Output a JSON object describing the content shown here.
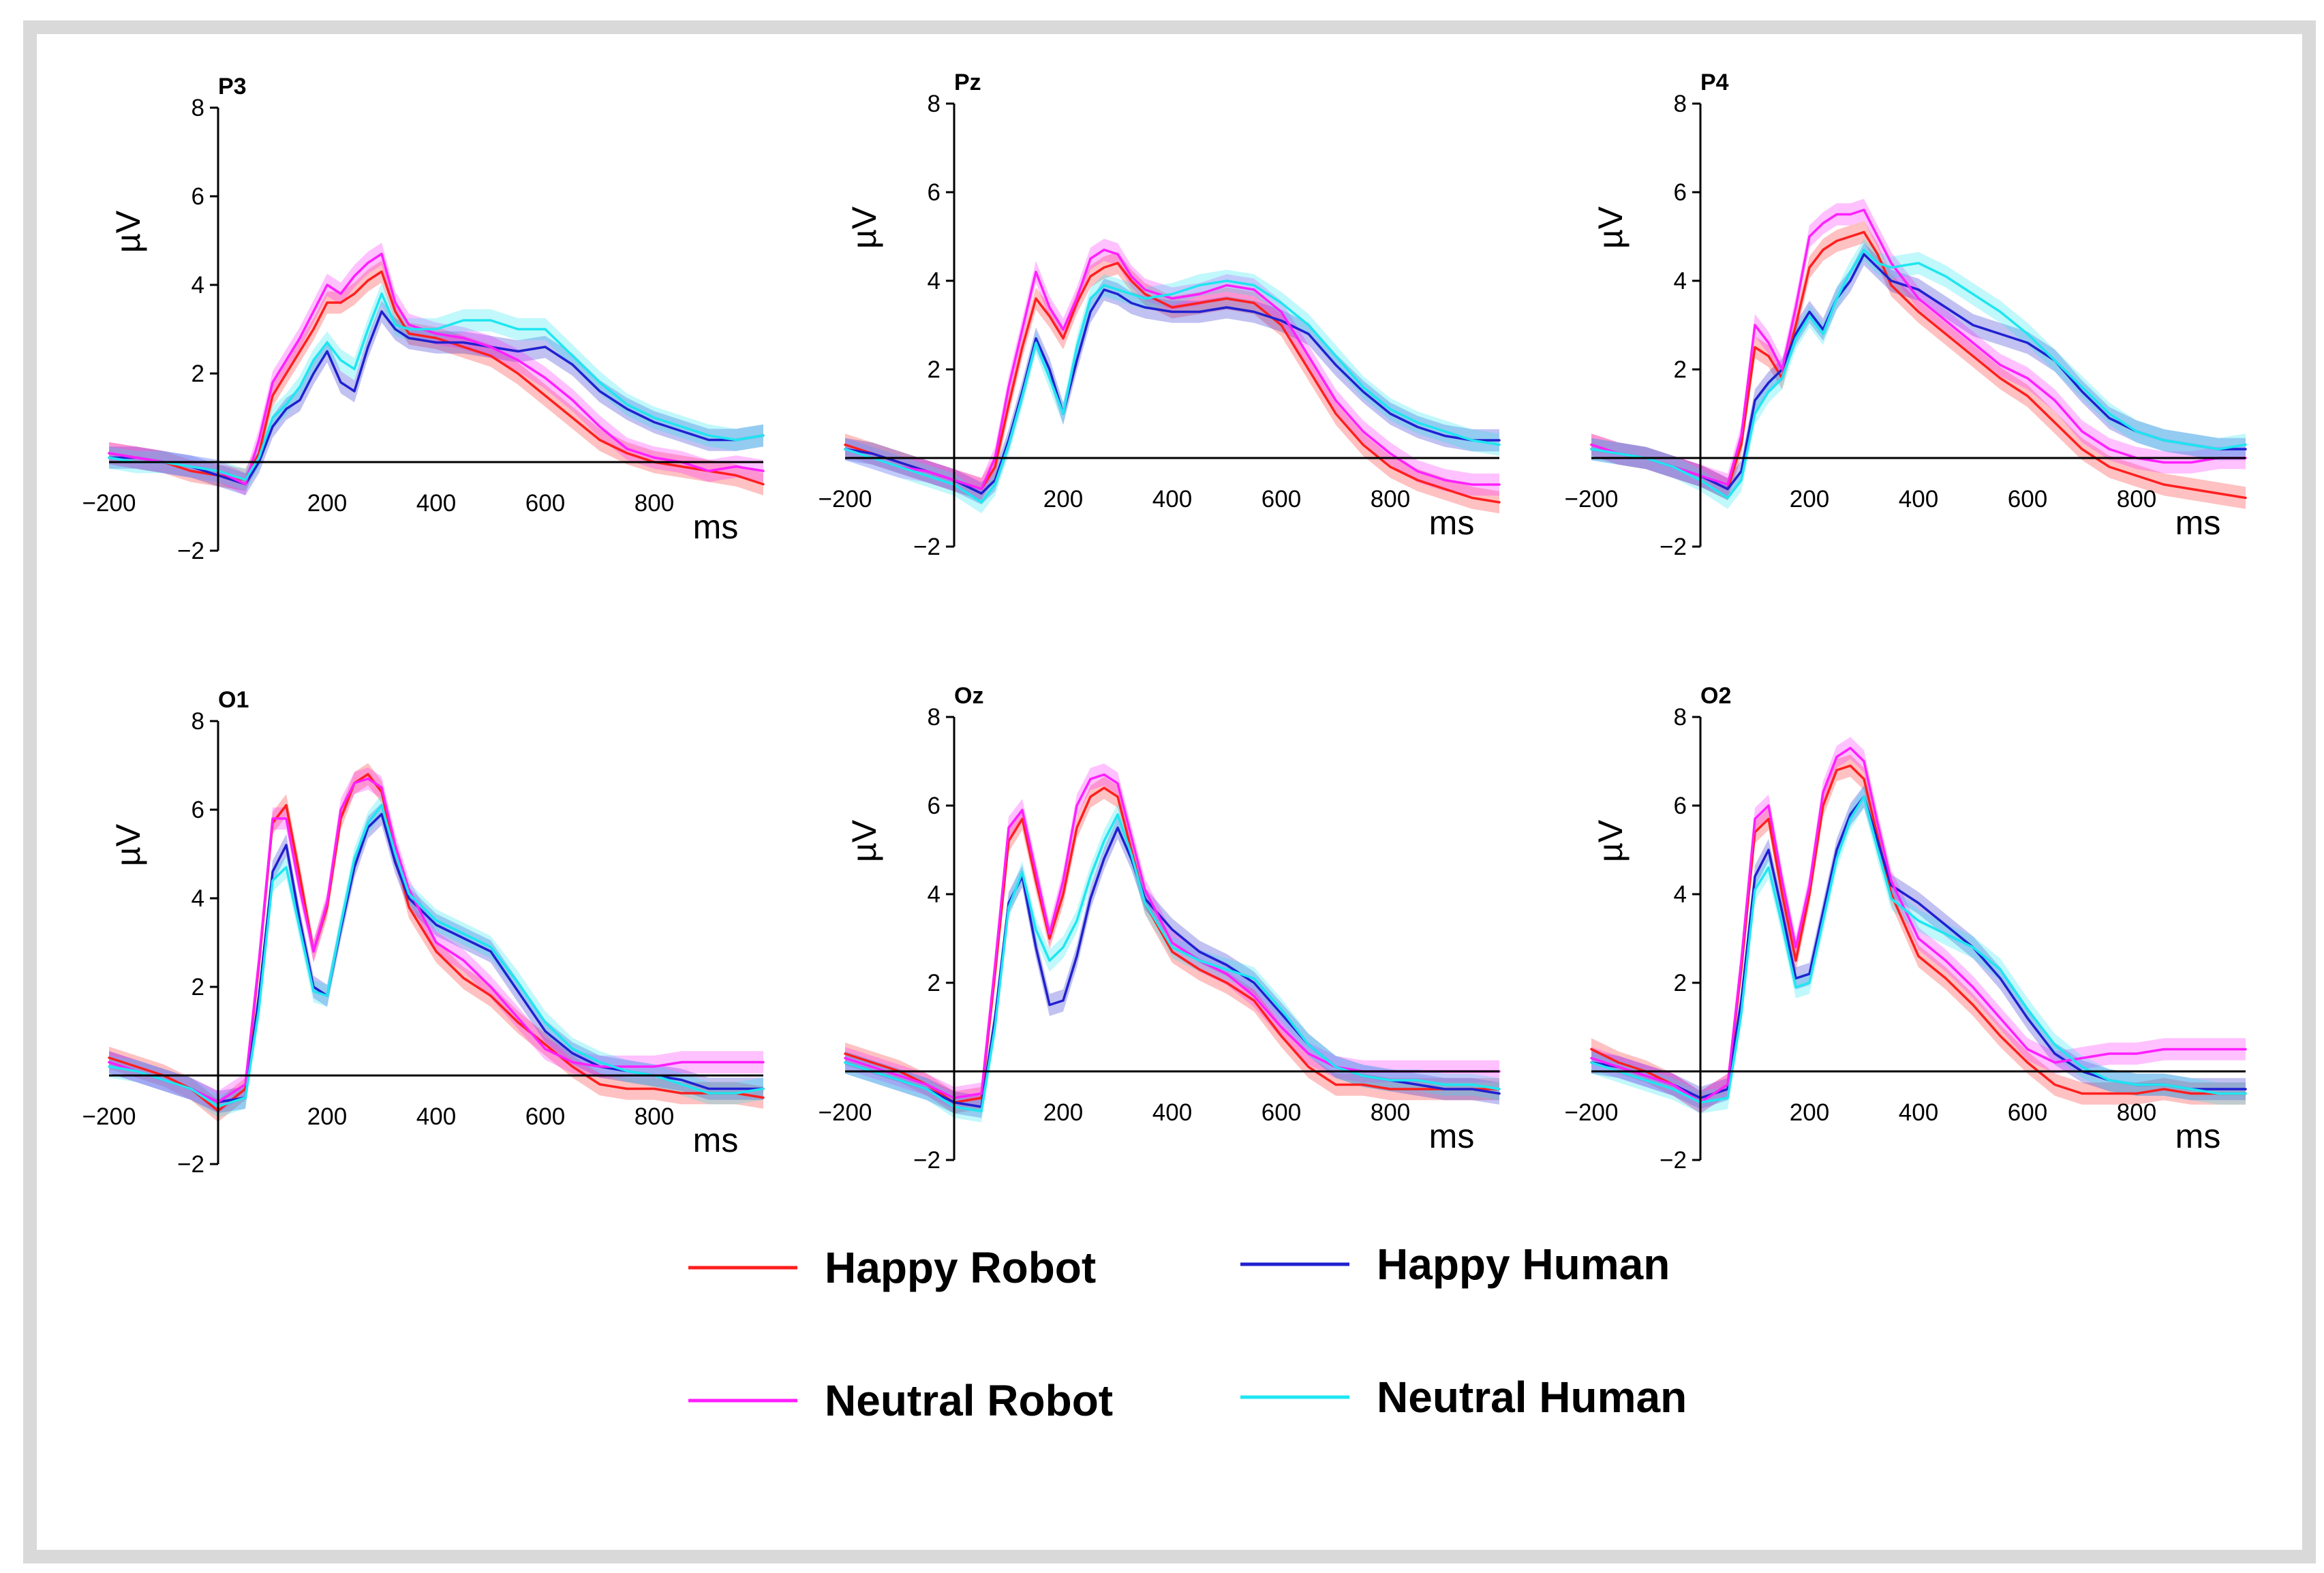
{
  "chart_data": {
    "type": "line",
    "x_unit": "ms",
    "y_unit": "µV",
    "xlim": [
      -200,
      1000
    ],
    "ylim": [
      -2,
      8
    ],
    "x_ticks": [
      -200,
      200,
      400,
      600,
      800
    ],
    "x_tick_labels": [
      "−200",
      "200",
      "400",
      "600",
      "800"
    ],
    "y_ticks": [
      -2,
      2,
      4,
      6,
      8
    ],
    "y_tick_labels": [
      "−2",
      "2",
      "4",
      "6",
      "8"
    ],
    "x": [
      -200,
      -150,
      -100,
      -50,
      0,
      50,
      75,
      100,
      125,
      150,
      175,
      200,
      225,
      250,
      275,
      300,
      325,
      350,
      400,
      450,
      500,
      550,
      600,
      650,
      700,
      750,
      800,
      850,
      900,
      950,
      1000
    ],
    "legend": [
      {
        "name": "Happy Robot",
        "color": "#ff1f1f"
      },
      {
        "name": "Happy Human",
        "color": "#2020d0"
      },
      {
        "name": "Neutral Robot",
        "color": "#ff1fff"
      },
      {
        "name": "Neutral Human",
        "color": "#1fe6f0"
      }
    ],
    "panels": [
      {
        "title": "P3",
        "series": [
          {
            "name": "Happy Robot",
            "color": "#ff1f1f",
            "values": [
              0.2,
              0.1,
              0.0,
              -0.2,
              -0.3,
              -0.4,
              0.2,
              1.5,
              2.0,
              2.5,
              3.0,
              3.6,
              3.6,
              3.8,
              4.1,
              4.3,
              3.4,
              2.9,
              2.8,
              2.6,
              2.4,
              2.0,
              1.5,
              1.0,
              0.5,
              0.2,
              0.0,
              -0.1,
              -0.2,
              -0.3,
              -0.5
            ]
          },
          {
            "name": "Happy Human",
            "color": "#2020d0",
            "values": [
              0.1,
              0.1,
              0.0,
              -0.1,
              -0.3,
              -0.5,
              0.0,
              0.8,
              1.2,
              1.4,
              2.0,
              2.5,
              1.8,
              1.6,
              2.6,
              3.4,
              3.0,
              2.8,
              2.7,
              2.7,
              2.6,
              2.5,
              2.6,
              2.2,
              1.6,
              1.2,
              0.9,
              0.7,
              0.5,
              0.5,
              0.6
            ]
          },
          {
            "name": "Neutral Robot",
            "color": "#ff1fff",
            "values": [
              0.2,
              0.1,
              0.0,
              -0.1,
              -0.2,
              -0.5,
              0.5,
              1.8,
              2.3,
              2.8,
              3.4,
              4.0,
              3.8,
              4.2,
              4.5,
              4.7,
              3.6,
              3.1,
              2.9,
              2.8,
              2.6,
              2.3,
              1.9,
              1.4,
              0.8,
              0.3,
              0.1,
              0.0,
              -0.2,
              -0.1,
              -0.2
            ]
          },
          {
            "name": "Neutral Human",
            "color": "#1fe6f0",
            "values": [
              0.1,
              0.0,
              0.0,
              -0.1,
              -0.2,
              -0.4,
              0.1,
              1.0,
              1.3,
              1.7,
              2.3,
              2.7,
              2.3,
              2.1,
              3.0,
              3.8,
              3.1,
              3.0,
              3.0,
              3.2,
              3.2,
              3.0,
              3.0,
              2.4,
              1.8,
              1.3,
              1.0,
              0.8,
              0.6,
              0.5,
              0.6
            ]
          }
        ]
      },
      {
        "title": "Pz",
        "series": [
          {
            "name": "Happy Robot",
            "color": "#ff1f1f",
            "values": [
              0.3,
              0.1,
              -0.1,
              -0.3,
              -0.5,
              -0.7,
              -0.2,
              1.2,
              2.5,
              3.6,
              3.2,
              2.7,
              3.5,
              4.1,
              4.3,
              4.4,
              4.0,
              3.7,
              3.4,
              3.5,
              3.6,
              3.5,
              3.0,
              2.0,
              1.0,
              0.3,
              -0.2,
              -0.5,
              -0.7,
              -0.9,
              -1.0
            ]
          },
          {
            "name": "Happy Human",
            "color": "#2020d0",
            "values": [
              0.2,
              0.1,
              -0.1,
              -0.3,
              -0.5,
              -0.8,
              -0.5,
              0.4,
              1.5,
              2.7,
              2.0,
              1.0,
              2.2,
              3.3,
              3.8,
              3.7,
              3.5,
              3.4,
              3.3,
              3.3,
              3.4,
              3.3,
              3.1,
              2.8,
              2.1,
              1.5,
              1.0,
              0.7,
              0.5,
              0.4,
              0.4
            ]
          },
          {
            "name": "Neutral Robot",
            "color": "#ff1fff",
            "values": [
              0.2,
              0.0,
              -0.2,
              -0.3,
              -0.5,
              -0.7,
              0.0,
              1.6,
              2.9,
              4.2,
              3.4,
              2.9,
              3.6,
              4.5,
              4.7,
              4.6,
              4.1,
              3.8,
              3.6,
              3.7,
              3.9,
              3.8,
              3.3,
              2.3,
              1.3,
              0.6,
              0.1,
              -0.3,
              -0.5,
              -0.6,
              -0.6
            ]
          },
          {
            "name": "Neutral Human",
            "color": "#1fe6f0",
            "values": [
              0.2,
              0.0,
              -0.2,
              -0.4,
              -0.6,
              -1.0,
              -0.6,
              0.3,
              1.4,
              2.6,
              1.8,
              1.0,
              2.5,
              3.6,
              3.9,
              3.8,
              3.7,
              3.6,
              3.7,
              3.9,
              4.0,
              3.9,
              3.5,
              3.0,
              2.3,
              1.6,
              1.1,
              0.8,
              0.6,
              0.4,
              0.3
            ]
          }
        ]
      },
      {
        "title": "P4",
        "series": [
          {
            "name": "Happy Robot",
            "color": "#ff1f1f",
            "values": [
              0.3,
              0.1,
              0.0,
              -0.2,
              -0.4,
              -0.7,
              0.3,
              2.5,
              2.3,
              1.8,
              3.0,
              4.3,
              4.7,
              4.9,
              5.0,
              5.1,
              4.6,
              3.9,
              3.3,
              2.8,
              2.3,
              1.8,
              1.4,
              0.8,
              0.2,
              -0.2,
              -0.4,
              -0.6,
              -0.7,
              -0.8,
              -0.9
            ]
          },
          {
            "name": "Happy Human",
            "color": "#2020d0",
            "values": [
              0.2,
              0.1,
              0.0,
              -0.2,
              -0.4,
              -0.7,
              -0.3,
              1.3,
              1.7,
              2.0,
              2.8,
              3.3,
              2.9,
              3.6,
              4.0,
              4.6,
              4.3,
              4.0,
              3.8,
              3.4,
              3.0,
              2.8,
              2.6,
              2.2,
              1.5,
              0.9,
              0.6,
              0.4,
              0.3,
              0.2,
              0.2
            ]
          },
          {
            "name": "Neutral Robot",
            "color": "#ff1fff",
            "values": [
              0.3,
              0.1,
              0.0,
              -0.2,
              -0.4,
              -0.6,
              0.5,
              3.0,
              2.6,
              2.0,
              3.4,
              5.0,
              5.3,
              5.5,
              5.5,
              5.6,
              5.0,
              4.4,
              3.6,
              3.1,
              2.6,
              2.1,
              1.8,
              1.3,
              0.6,
              0.2,
              0.0,
              -0.1,
              -0.1,
              0.0,
              0.0
            ]
          },
          {
            "name": "Neutral Human",
            "color": "#1fe6f0",
            "values": [
              0.2,
              0.1,
              0.0,
              -0.2,
              -0.5,
              -0.9,
              -0.5,
              1.0,
              1.5,
              1.8,
              2.7,
              3.2,
              2.8,
              3.6,
              4.2,
              4.7,
              4.4,
              4.3,
              4.4,
              4.1,
              3.7,
              3.3,
              2.8,
              2.2,
              1.6,
              1.0,
              0.6,
              0.4,
              0.3,
              0.2,
              0.3
            ]
          }
        ]
      },
      {
        "title": "O1",
        "series": [
          {
            "name": "Happy Robot",
            "color": "#ff1f1f",
            "values": [
              0.4,
              0.2,
              0.0,
              -0.3,
              -0.8,
              -0.3,
              2.5,
              5.7,
              6.1,
              4.5,
              2.8,
              3.8,
              5.8,
              6.6,
              6.8,
              6.4,
              5.0,
              3.8,
              2.8,
              2.2,
              1.8,
              1.2,
              0.7,
              0.2,
              -0.2,
              -0.3,
              -0.3,
              -0.4,
              -0.4,
              -0.4,
              -0.5
            ]
          },
          {
            "name": "Happy Human",
            "color": "#2020d0",
            "values": [
              0.3,
              0.1,
              -0.1,
              -0.3,
              -0.6,
              -0.5,
              1.8,
              4.6,
              5.2,
              3.5,
              2.0,
              1.8,
              3.3,
              4.7,
              5.6,
              5.9,
              4.8,
              4.0,
              3.4,
              3.1,
              2.8,
              1.9,
              1.0,
              0.5,
              0.2,
              0.1,
              0.0,
              -0.1,
              -0.3,
              -0.3,
              -0.3
            ]
          },
          {
            "name": "Neutral Robot",
            "color": "#ff1fff",
            "values": [
              0.3,
              0.1,
              -0.1,
              -0.3,
              -0.6,
              -0.2,
              2.6,
              5.8,
              5.8,
              4.2,
              2.8,
              3.9,
              6.0,
              6.6,
              6.7,
              6.5,
              5.2,
              4.2,
              3.0,
              2.6,
              2.0,
              1.3,
              0.6,
              0.3,
              0.2,
              0.2,
              0.2,
              0.3,
              0.3,
              0.3,
              0.3
            ]
          },
          {
            "name": "Neutral Human",
            "color": "#1fe6f0",
            "values": [
              0.2,
              0.1,
              -0.1,
              -0.3,
              -0.7,
              -0.5,
              1.5,
              4.4,
              4.7,
              3.3,
              1.9,
              1.8,
              3.4,
              4.9,
              5.7,
              6.1,
              5.0,
              4.1,
              3.5,
              3.2,
              2.9,
              2.1,
              1.2,
              0.6,
              0.3,
              0.1,
              0.0,
              -0.2,
              -0.4,
              -0.4,
              -0.3
            ]
          }
        ]
      },
      {
        "title": "Oz",
        "series": [
          {
            "name": "Happy Robot",
            "color": "#ff1f1f",
            "values": [
              0.4,
              0.2,
              0.0,
              -0.3,
              -0.7,
              -0.6,
              2.2,
              5.2,
              5.7,
              4.3,
              3.0,
              4.0,
              5.5,
              6.2,
              6.4,
              6.2,
              5.0,
              3.8,
              2.7,
              2.3,
              2.0,
              1.6,
              0.8,
              0.1,
              -0.3,
              -0.3,
              -0.4,
              -0.4,
              -0.4,
              -0.4,
              -0.4
            ]
          },
          {
            "name": "Happy Human",
            "color": "#2020d0",
            "values": [
              0.2,
              0.0,
              -0.2,
              -0.4,
              -0.7,
              -0.8,
              1.2,
              3.8,
              4.4,
              2.8,
              1.5,
              1.6,
              2.6,
              3.9,
              4.8,
              5.5,
              4.8,
              3.9,
              3.2,
              2.7,
              2.4,
              2.0,
              1.3,
              0.6,
              0.1,
              -0.1,
              -0.2,
              -0.3,
              -0.4,
              -0.4,
              -0.5
            ]
          },
          {
            "name": "Neutral Robot",
            "color": "#ff1fff",
            "values": [
              0.3,
              0.1,
              -0.1,
              -0.3,
              -0.6,
              -0.5,
              2.4,
              5.5,
              5.9,
              4.5,
              3.1,
              4.3,
              6.0,
              6.6,
              6.7,
              6.5,
              5.3,
              4.1,
              2.9,
              2.5,
              2.2,
              1.7,
              1.0,
              0.4,
              0.1,
              0.0,
              0.0,
              0.0,
              0.0,
              0.0,
              0.0
            ]
          },
          {
            "name": "Neutral Human",
            "color": "#1fe6f0",
            "values": [
              0.2,
              0.0,
              -0.2,
              -0.4,
              -0.8,
              -0.9,
              1.0,
              3.7,
              4.5,
              3.2,
              2.5,
              2.8,
              3.4,
              4.4,
              5.2,
              5.8,
              4.9,
              3.8,
              2.8,
              2.5,
              2.3,
              2.1,
              1.4,
              0.6,
              0.1,
              -0.1,
              -0.2,
              -0.2,
              -0.3,
              -0.3,
              -0.4
            ]
          }
        ]
      },
      {
        "title": "O2",
        "series": [
          {
            "name": "Happy Robot",
            "color": "#ff1f1f",
            "values": [
              0.5,
              0.2,
              0.0,
              -0.3,
              -0.7,
              -0.3,
              2.3,
              5.4,
              5.7,
              4.0,
              2.5,
              4.0,
              6.0,
              6.8,
              6.9,
              6.6,
              5.3,
              4.0,
              2.6,
              2.1,
              1.5,
              0.8,
              0.2,
              -0.3,
              -0.5,
              -0.5,
              -0.5,
              -0.4,
              -0.5,
              -0.5,
              -0.5
            ]
          },
          {
            "name": "Happy Human",
            "color": "#2020d0",
            "values": [
              0.2,
              0.1,
              -0.1,
              -0.3,
              -0.6,
              -0.4,
              1.6,
              4.4,
              5.0,
              3.6,
              2.1,
              2.2,
              3.6,
              5.0,
              5.8,
              6.2,
              5.2,
              4.2,
              3.8,
              3.3,
              2.8,
              2.1,
              1.2,
              0.4,
              0.0,
              -0.2,
              -0.3,
              -0.3,
              -0.4,
              -0.4,
              -0.4
            ]
          },
          {
            "name": "Neutral Robot",
            "color": "#ff1fff",
            "values": [
              0.3,
              0.1,
              -0.1,
              -0.3,
              -0.7,
              -0.3,
              2.5,
              5.7,
              6.0,
              4.3,
              2.8,
              4.2,
              6.3,
              7.1,
              7.3,
              7.0,
              5.6,
              4.3,
              3.0,
              2.5,
              1.9,
              1.2,
              0.5,
              0.2,
              0.3,
              0.4,
              0.4,
              0.5,
              0.5,
              0.5,
              0.5
            ]
          },
          {
            "name": "Neutral Human",
            "color": "#1fe6f0",
            "values": [
              0.2,
              0.0,
              -0.2,
              -0.4,
              -0.7,
              -0.6,
              1.3,
              4.1,
              4.6,
              3.3,
              1.9,
              2.0,
              3.4,
              4.8,
              5.7,
              6.2,
              5.0,
              3.9,
              3.4,
              3.1,
              2.8,
              2.3,
              1.4,
              0.6,
              0.1,
              -0.2,
              -0.3,
              -0.3,
              -0.4,
              -0.5,
              -0.5
            ]
          }
        ]
      }
    ]
  }
}
